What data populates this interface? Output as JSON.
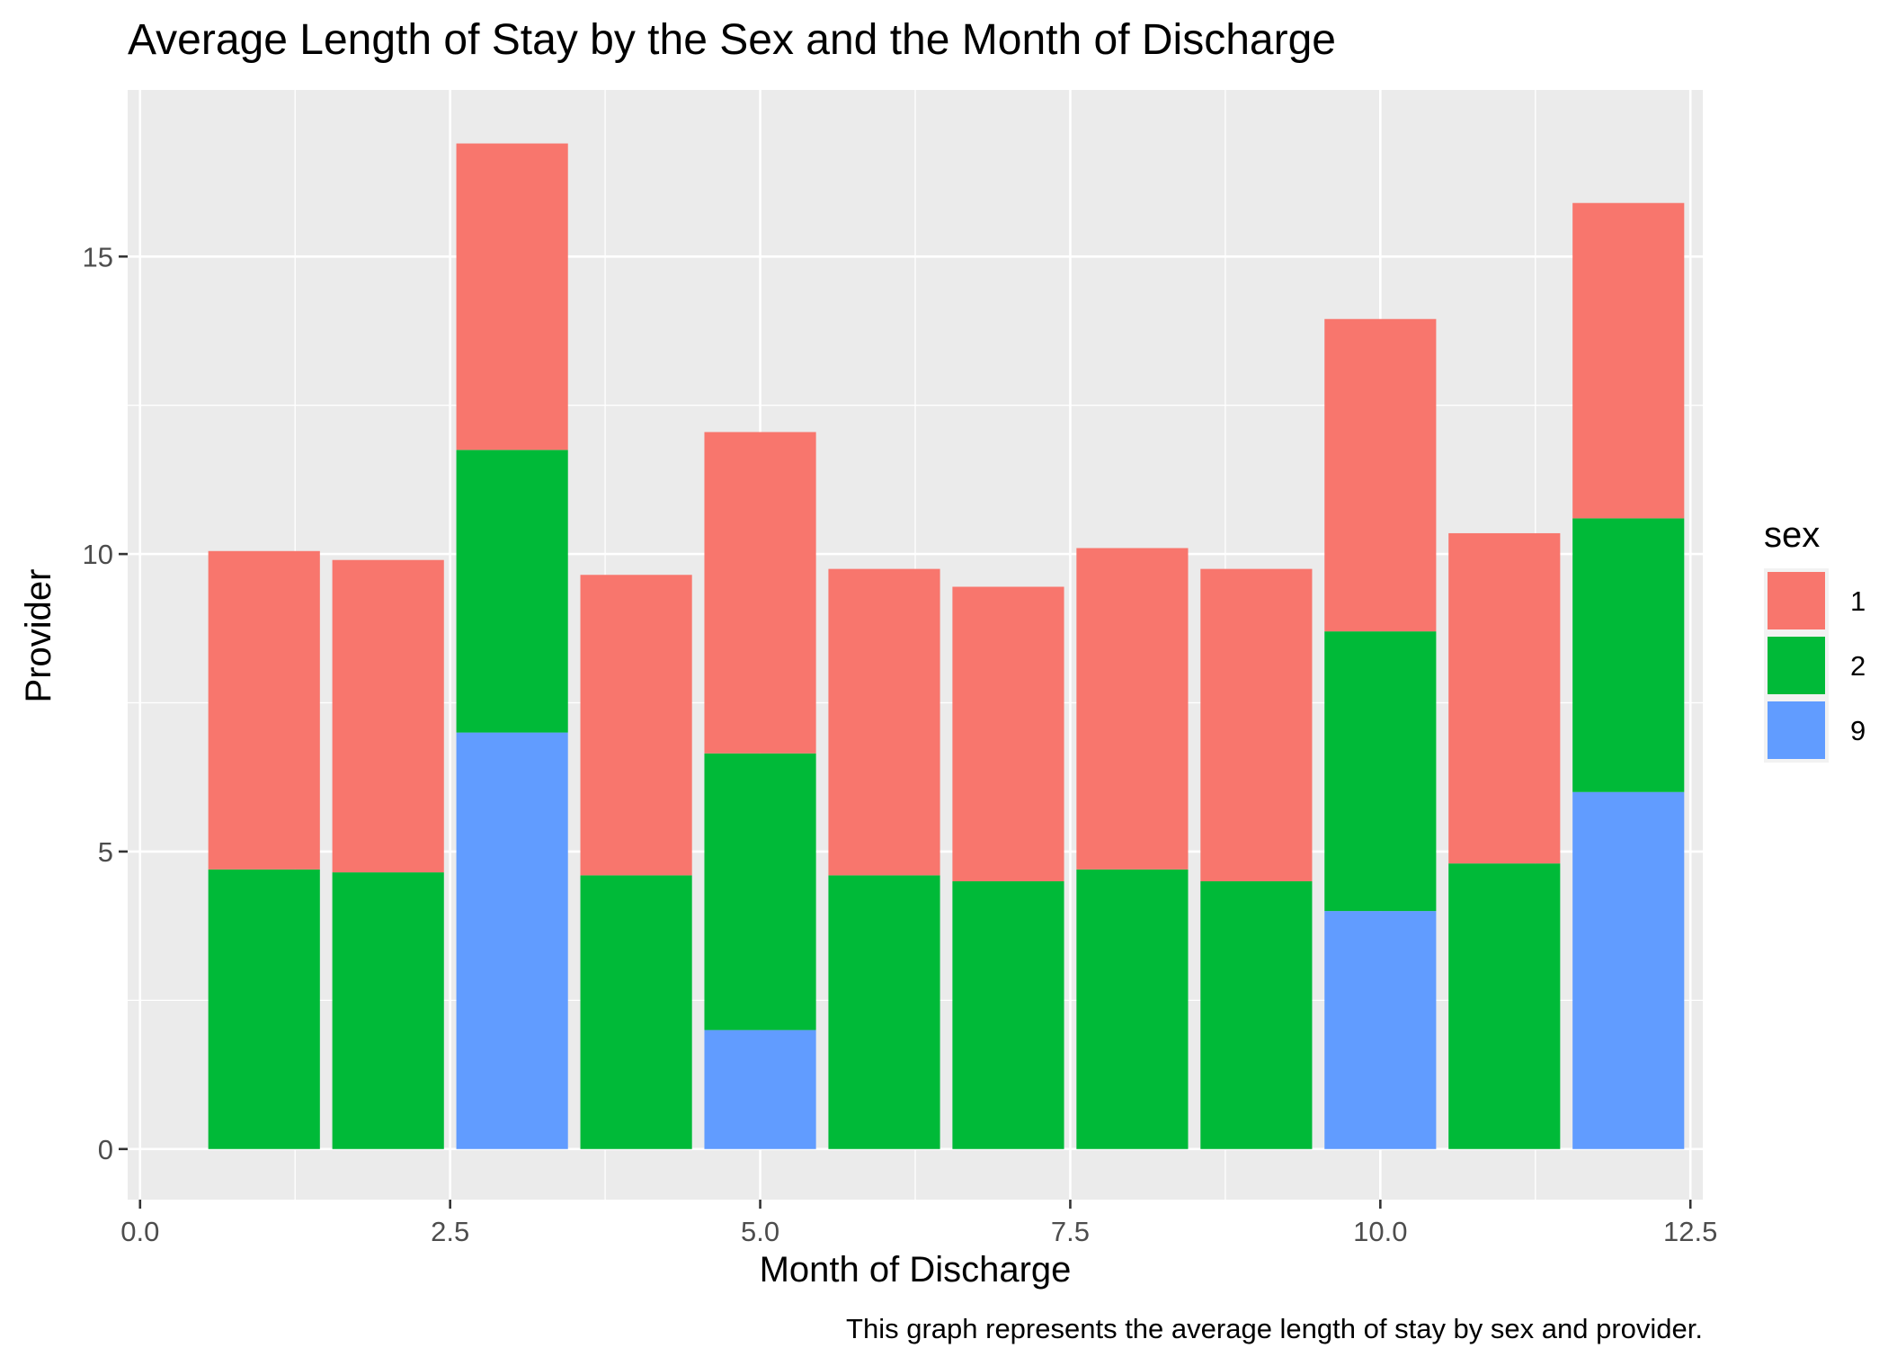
{
  "chart_data": {
    "type": "bar",
    "stacked": true,
    "title": "Average Length of Stay by the Sex and the Month of Discharge",
    "xlabel": "Month of Discharge",
    "ylabel": "Provider",
    "caption": "This graph represents the average length of stay by sex and provider.",
    "xlim": [
      -0.1,
      12.6
    ],
    "ylim": [
      -0.85,
      17.8
    ],
    "x_ticks": [
      0.0,
      2.5,
      5.0,
      7.5,
      10.0,
      12.5
    ],
    "x_tick_labels": [
      "0.0",
      "2.5",
      "5.0",
      "7.5",
      "10.0",
      "12.5"
    ],
    "y_ticks": [
      0,
      5,
      10,
      15
    ],
    "y_tick_labels": [
      "0",
      "5",
      "10",
      "15"
    ],
    "grid": true,
    "legend": {
      "title": "sex",
      "placement": "right"
    },
    "categories": [
      1,
      2,
      3,
      4,
      5,
      6,
      7,
      8,
      9,
      10,
      11,
      12
    ],
    "series": [
      {
        "name": "9",
        "color": "#619CFF",
        "values": [
          0,
          0,
          7.0,
          0,
          2.0,
          0,
          0,
          0,
          0,
          4.0,
          0,
          6.0
        ]
      },
      {
        "name": "2",
        "color": "#00BA38",
        "values": [
          4.7,
          4.65,
          4.75,
          4.6,
          4.65,
          4.6,
          4.5,
          4.7,
          4.5,
          4.7,
          4.8,
          4.6
        ]
      },
      {
        "name": "1",
        "color": "#F8766D",
        "values": [
          5.35,
          5.25,
          5.15,
          5.05,
          5.4,
          5.15,
          4.95,
          5.4,
          5.25,
          5.25,
          5.55,
          5.3
        ]
      }
    ],
    "legend_order": [
      "1",
      "2",
      "9"
    ]
  }
}
